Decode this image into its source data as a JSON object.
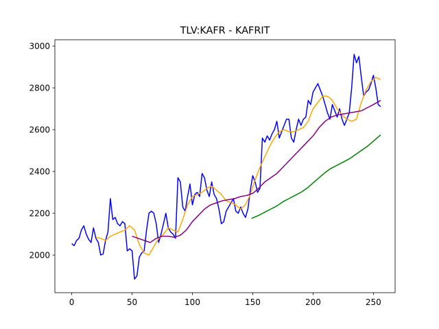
{
  "chart_data": {
    "type": "line",
    "title": "TLV:KAFR - KAFRIT",
    "xlabel": "",
    "ylabel": "",
    "xlim": [
      -14,
      268
    ],
    "ylim": [
      1820,
      3030
    ],
    "xticks": [
      0,
      50,
      100,
      150,
      200,
      250
    ],
    "yticks": [
      2000,
      2200,
      2400,
      2600,
      2800,
      3000
    ],
    "grid": false,
    "legend": "none",
    "series": [
      {
        "color": "#0000ff",
        "x": [
          0,
          2,
          4,
          6,
          8,
          10,
          12,
          14,
          16,
          18,
          20,
          22,
          24,
          26,
          28,
          30,
          32,
          34,
          36,
          38,
          40,
          42,
          44,
          46,
          48,
          50,
          52,
          54,
          56,
          58,
          60,
          62,
          64,
          66,
          68,
          70,
          72,
          74,
          76,
          78,
          80,
          82,
          84,
          86,
          88,
          90,
          92,
          94,
          96,
          98,
          100,
          102,
          104,
          106,
          108,
          110,
          112,
          114,
          116,
          118,
          120,
          122,
          124,
          126,
          128,
          130,
          132,
          134,
          136,
          138,
          140,
          142,
          144,
          146,
          148,
          150,
          152,
          154,
          156,
          158,
          160,
          162,
          164,
          166,
          168,
          170,
          172,
          174,
          176,
          178,
          180,
          182,
          184,
          186,
          188,
          190,
          192,
          194,
          196,
          198,
          200,
          202,
          204,
          206,
          208,
          210,
          212,
          214,
          216,
          218,
          220,
          222,
          224,
          226,
          228,
          230,
          232,
          234,
          236,
          238,
          240,
          242,
          244,
          246,
          248,
          250,
          252,
          254,
          256
        ],
        "y": [
          2055,
          2045,
          2070,
          2080,
          2120,
          2140,
          2100,
          2075,
          2060,
          2130,
          2080,
          2060,
          2000,
          2005,
          2070,
          2110,
          2270,
          2170,
          2180,
          2150,
          2140,
          2160,
          2150,
          2020,
          2030,
          2020,
          1885,
          1900,
          1990,
          2010,
          2020,
          2120,
          2200,
          2210,
          2200,
          2150,
          2060,
          2100,
          2150,
          2200,
          2130,
          2110,
          2100,
          2080,
          2370,
          2350,
          2230,
          2210,
          2280,
          2340,
          2240,
          2290,
          2300,
          2280,
          2390,
          2370,
          2310,
          2280,
          2350,
          2290,
          2270,
          2220,
          2150,
          2160,
          2210,
          2230,
          2250,
          2270,
          2210,
          2200,
          2230,
          2200,
          2180,
          2220,
          2310,
          2380,
          2350,
          2300,
          2320,
          2560,
          2540,
          2570,
          2550,
          2580,
          2600,
          2640,
          2560,
          2590,
          2620,
          2650,
          2650,
          2560,
          2540,
          2600,
          2650,
          2620,
          2650,
          2660,
          2740,
          2720,
          2780,
          2800,
          2820,
          2790,
          2760,
          2720,
          2680,
          2650,
          2720,
          2690,
          2660,
          2700,
          2650,
          2620,
          2650,
          2680,
          2800,
          2960,
          2920,
          2950,
          2850,
          2760,
          2780,
          2790,
          2820,
          2860,
          2800,
          2720,
          2710
        ]
      },
      {
        "color": "#ffa500",
        "x": [
          20,
          24,
          28,
          32,
          36,
          40,
          44,
          48,
          52,
          56,
          60,
          64,
          68,
          72,
          76,
          80,
          84,
          88,
          92,
          96,
          100,
          104,
          108,
          112,
          116,
          120,
          124,
          128,
          132,
          136,
          140,
          144,
          148,
          152,
          156,
          160,
          164,
          168,
          172,
          176,
          180,
          184,
          188,
          192,
          196,
          200,
          204,
          208,
          212,
          216,
          220,
          224,
          228,
          232,
          236,
          240,
          244,
          248,
          252,
          256
        ],
        "y": [
          2085,
          2080,
          2070,
          2090,
          2100,
          2110,
          2120,
          2140,
          2120,
          2050,
          2010,
          2000,
          2040,
          2080,
          2100,
          2130,
          2120,
          2110,
          2170,
          2240,
          2280,
          2290,
          2300,
          2320,
          2330,
          2310,
          2290,
          2260,
          2250,
          2240,
          2220,
          2240,
          2290,
          2360,
          2420,
          2470,
          2520,
          2560,
          2590,
          2600,
          2590,
          2590,
          2600,
          2610,
          2640,
          2700,
          2730,
          2760,
          2760,
          2740,
          2700,
          2670,
          2650,
          2640,
          2650,
          2730,
          2790,
          2830,
          2850,
          2840
        ]
      },
      {
        "color": "#800080",
        "x": [
          50,
          55,
          60,
          65,
          70,
          75,
          80,
          85,
          90,
          95,
          100,
          105,
          110,
          115,
          120,
          125,
          130,
          135,
          140,
          145,
          150,
          155,
          160,
          165,
          170,
          175,
          180,
          185,
          190,
          195,
          200,
          205,
          210,
          215,
          220,
          225,
          230,
          235,
          240,
          245,
          250,
          256
        ],
        "y": [
          2090,
          2080,
          2070,
          2060,
          2080,
          2090,
          2090,
          2085,
          2095,
          2120,
          2160,
          2190,
          2220,
          2240,
          2250,
          2260,
          2265,
          2270,
          2280,
          2285,
          2295,
          2320,
          2350,
          2370,
          2390,
          2420,
          2450,
          2480,
          2510,
          2540,
          2570,
          2610,
          2640,
          2660,
          2670,
          2675,
          2680,
          2685,
          2690,
          2705,
          2720,
          2740
        ]
      },
      {
        "color": "#008000",
        "x": [
          149,
          155,
          160,
          165,
          170,
          175,
          180,
          185,
          190,
          195,
          200,
          205,
          210,
          215,
          220,
          225,
          230,
          235,
          240,
          245,
          250,
          256
        ],
        "y": [
          2175,
          2190,
          2205,
          2220,
          2235,
          2255,
          2270,
          2285,
          2300,
          2320,
          2345,
          2370,
          2395,
          2415,
          2430,
          2445,
          2460,
          2480,
          2500,
          2520,
          2545,
          2575
        ]
      }
    ]
  }
}
